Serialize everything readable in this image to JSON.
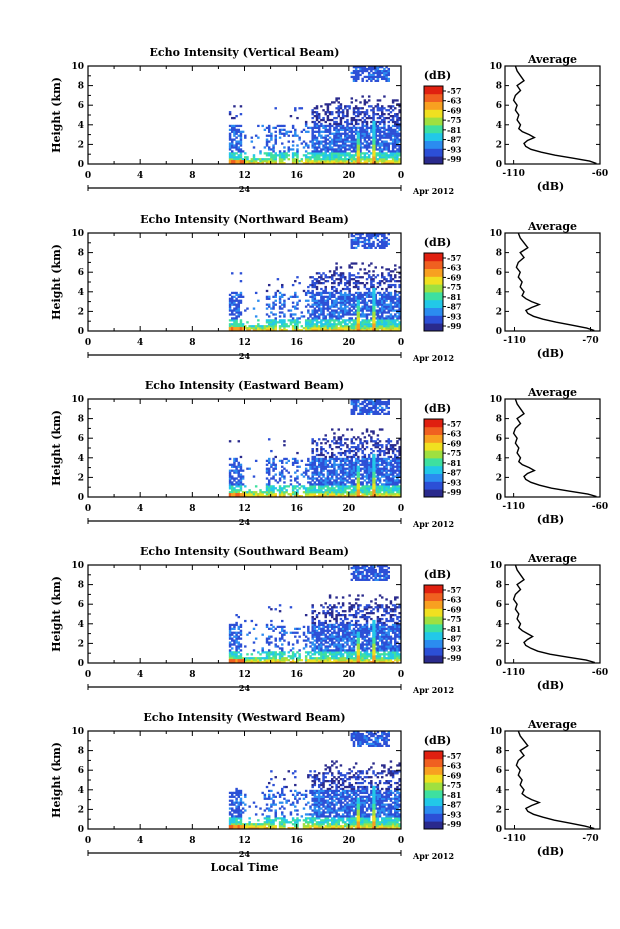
{
  "chart_data": [
    {
      "type": "heatmap",
      "title": "Echo Intensity (Vertical Beam)",
      "ylabel": "Height (km)",
      "xlabel": "",
      "x_ticks": [
        "0",
        "4",
        "8",
        "12",
        "16",
        "20",
        "0"
      ],
      "y_ticks": [
        "0",
        "2",
        "4",
        "6",
        "8",
        "10"
      ],
      "xlim": [
        0,
        24
      ],
      "ylim": [
        0,
        10
      ],
      "date_label": "24",
      "month_label": "Apr 2012",
      "colorbar": {
        "label": "(dB)",
        "ticks": [
          "-57",
          "-63",
          "-69",
          "-75",
          "-81",
          "-87",
          "-93",
          "-99"
        ]
      },
      "average_profile": {
        "title": "Average",
        "xlabel": "(dB)",
        "x_ticks": [
          "-110",
          "-60"
        ],
        "xlim": [
          -115,
          -60
        ],
        "y_ticks": [
          "0",
          "2",
          "4",
          "6",
          "8",
          "10"
        ],
        "values": [
          [
            0.05,
            -62
          ],
          [
            0.3,
            -66
          ],
          [
            0.6,
            -76
          ],
          [
            0.9,
            -86
          ],
          [
            1.2,
            -94
          ],
          [
            1.5,
            -100
          ],
          [
            1.8,
            -103
          ],
          [
            2.1,
            -104
          ],
          [
            2.4,
            -102
          ],
          [
            2.7,
            -98
          ],
          [
            3.0,
            -101
          ],
          [
            3.3,
            -105
          ],
          [
            3.6,
            -107
          ],
          [
            4.0,
            -106
          ],
          [
            4.5,
            -108
          ],
          [
            5.0,
            -107
          ],
          [
            5.5,
            -109
          ],
          [
            6.0,
            -108
          ],
          [
            6.5,
            -110
          ],
          [
            7.0,
            -109
          ],
          [
            7.5,
            -106
          ],
          [
            8.0,
            -108
          ],
          [
            8.5,
            -104
          ],
          [
            9.0,
            -106
          ],
          [
            9.5,
            -108
          ],
          [
            10.0,
            -109
          ]
        ]
      }
    },
    {
      "type": "heatmap",
      "title": "Echo Intensity (Northward Beam)",
      "ylabel": "Height (km)",
      "xlabel": "",
      "x_ticks": [
        "0",
        "4",
        "8",
        "12",
        "16",
        "20",
        "0"
      ],
      "y_ticks": [
        "0",
        "2",
        "4",
        "6",
        "8",
        "10"
      ],
      "xlim": [
        0,
        24
      ],
      "ylim": [
        0,
        10
      ],
      "date_label": "24",
      "month_label": "Apr 2012",
      "colorbar": {
        "label": "(dB)",
        "ticks": [
          "-57",
          "-63",
          "-69",
          "-75",
          "-81",
          "-87",
          "-93",
          "-99"
        ]
      },
      "average_profile": {
        "title": "Average",
        "xlabel": "(dB)",
        "x_ticks": [
          "-110",
          "-70"
        ],
        "xlim": [
          -115,
          -65
        ],
        "y_ticks": [
          "0",
          "2",
          "4",
          "6",
          "8",
          "10"
        ],
        "values": [
          [
            0.05,
            -68
          ],
          [
            0.3,
            -72
          ],
          [
            0.6,
            -80
          ],
          [
            0.9,
            -88
          ],
          [
            1.2,
            -95
          ],
          [
            1.5,
            -100
          ],
          [
            1.8,
            -103
          ],
          [
            2.1,
            -104
          ],
          [
            2.4,
            -101
          ],
          [
            2.7,
            -97
          ],
          [
            3.0,
            -101
          ],
          [
            3.3,
            -104
          ],
          [
            3.6,
            -106
          ],
          [
            4.0,
            -105
          ],
          [
            4.5,
            -107
          ],
          [
            5.0,
            -106
          ],
          [
            5.5,
            -108
          ],
          [
            6.0,
            -107
          ],
          [
            6.5,
            -109
          ],
          [
            7.0,
            -108
          ],
          [
            7.5,
            -105
          ],
          [
            8.0,
            -107
          ],
          [
            8.5,
            -103
          ],
          [
            9.0,
            -105
          ],
          [
            9.5,
            -107
          ],
          [
            10.0,
            -108
          ]
        ]
      }
    },
    {
      "type": "heatmap",
      "title": "Echo Intensity (Eastward Beam)",
      "ylabel": "Height (km)",
      "xlabel": "",
      "x_ticks": [
        "0",
        "4",
        "8",
        "12",
        "16",
        "20",
        "0"
      ],
      "y_ticks": [
        "0",
        "2",
        "4",
        "6",
        "8",
        "10"
      ],
      "xlim": [
        0,
        24
      ],
      "ylim": [
        0,
        10
      ],
      "date_label": "24",
      "month_label": "Apr 2012",
      "colorbar": {
        "label": "(dB)",
        "ticks": [
          "-57",
          "-63",
          "-69",
          "-75",
          "-81",
          "-87",
          "-93",
          "-99"
        ]
      },
      "average_profile": {
        "title": "Average",
        "xlabel": "(dB)",
        "x_ticks": [
          "-110",
          "-60"
        ],
        "xlim": [
          -115,
          -60
        ],
        "y_ticks": [
          "0",
          "2",
          "4",
          "6",
          "8",
          "10"
        ],
        "values": [
          [
            0.05,
            -62
          ],
          [
            0.3,
            -67
          ],
          [
            0.6,
            -78
          ],
          [
            0.9,
            -88
          ],
          [
            1.2,
            -95
          ],
          [
            1.5,
            -100
          ],
          [
            1.8,
            -103
          ],
          [
            2.1,
            -104
          ],
          [
            2.4,
            -102
          ],
          [
            2.7,
            -98
          ],
          [
            3.0,
            -101
          ],
          [
            3.3,
            -105
          ],
          [
            3.6,
            -107
          ],
          [
            4.0,
            -106
          ],
          [
            4.5,
            -108
          ],
          [
            5.0,
            -107
          ],
          [
            5.5,
            -109
          ],
          [
            6.0,
            -108
          ],
          [
            6.5,
            -110
          ],
          [
            7.0,
            -109
          ],
          [
            7.5,
            -106
          ],
          [
            8.0,
            -108
          ],
          [
            8.5,
            -104
          ],
          [
            9.0,
            -106
          ],
          [
            9.5,
            -108
          ],
          [
            10.0,
            -109
          ]
        ]
      }
    },
    {
      "type": "heatmap",
      "title": "Echo Intensity (Southward Beam)",
      "ylabel": "Height (km)",
      "xlabel": "",
      "x_ticks": [
        "0",
        "4",
        "8",
        "12",
        "16",
        "20",
        "0"
      ],
      "y_ticks": [
        "0",
        "2",
        "4",
        "6",
        "8",
        "10"
      ],
      "xlim": [
        0,
        24
      ],
      "ylim": [
        0,
        10
      ],
      "date_label": "24",
      "month_label": "Apr 2012",
      "colorbar": {
        "label": "(dB)",
        "ticks": [
          "-57",
          "-63",
          "-69",
          "-75",
          "-81",
          "-87",
          "-93",
          "-99"
        ]
      },
      "average_profile": {
        "title": "Average",
        "xlabel": "(dB)",
        "x_ticks": [
          "-110",
          "-60"
        ],
        "xlim": [
          -115,
          -60
        ],
        "y_ticks": [
          "0",
          "2",
          "4",
          "6",
          "8",
          "10"
        ],
        "values": [
          [
            0.05,
            -63
          ],
          [
            0.3,
            -68
          ],
          [
            0.6,
            -79
          ],
          [
            0.9,
            -89
          ],
          [
            1.2,
            -96
          ],
          [
            1.5,
            -100
          ],
          [
            1.8,
            -103
          ],
          [
            2.1,
            -104
          ],
          [
            2.4,
            -102
          ],
          [
            2.7,
            -99
          ],
          [
            3.0,
            -102
          ],
          [
            3.3,
            -105
          ],
          [
            3.6,
            -107
          ],
          [
            4.0,
            -106
          ],
          [
            4.5,
            -108
          ],
          [
            5.0,
            -107
          ],
          [
            5.5,
            -109
          ],
          [
            6.0,
            -108
          ],
          [
            6.5,
            -110
          ],
          [
            7.0,
            -109
          ],
          [
            7.5,
            -106
          ],
          [
            8.0,
            -108
          ],
          [
            8.5,
            -104
          ],
          [
            9.0,
            -106
          ],
          [
            9.5,
            -108
          ],
          [
            10.0,
            -109
          ]
        ]
      }
    },
    {
      "type": "heatmap",
      "title": "Echo Intensity (Westward Beam)",
      "ylabel": "Height (km)",
      "xlabel": "Local Time",
      "x_ticks": [
        "0",
        "4",
        "8",
        "12",
        "16",
        "20",
        "0"
      ],
      "y_ticks": [
        "0",
        "2",
        "4",
        "6",
        "8",
        "10"
      ],
      "xlim": [
        0,
        24
      ],
      "ylim": [
        0,
        10
      ],
      "date_label": "24",
      "month_label": "Apr 2012",
      "colorbar": {
        "label": "(dB)",
        "ticks": [
          "-57",
          "-63",
          "-69",
          "-75",
          "-81",
          "-87",
          "-93",
          "-99"
        ]
      },
      "average_profile": {
        "title": "Average",
        "xlabel": "(dB)",
        "x_ticks": [
          "-110",
          "-70"
        ],
        "xlim": [
          -115,
          -65
        ],
        "y_ticks": [
          "0",
          "2",
          "4",
          "6",
          "8",
          "10"
        ],
        "values": [
          [
            0.05,
            -68
          ],
          [
            0.3,
            -73
          ],
          [
            0.6,
            -81
          ],
          [
            0.9,
            -89
          ],
          [
            1.2,
            -95
          ],
          [
            1.5,
            -100
          ],
          [
            1.8,
            -103
          ],
          [
            2.1,
            -104
          ],
          [
            2.4,
            -101
          ],
          [
            2.7,
            -97
          ],
          [
            3.0,
            -101
          ],
          [
            3.3,
            -104
          ],
          [
            3.6,
            -106
          ],
          [
            4.0,
            -105
          ],
          [
            4.5,
            -107
          ],
          [
            5.0,
            -106
          ],
          [
            5.5,
            -108
          ],
          [
            6.0,
            -107
          ],
          [
            6.5,
            -109
          ],
          [
            7.0,
            -108
          ],
          [
            7.5,
            -105
          ],
          [
            8.0,
            -107
          ],
          [
            8.5,
            -103
          ],
          [
            9.0,
            -105
          ],
          [
            9.5,
            -107
          ],
          [
            10.0,
            -108
          ]
        ]
      }
    }
  ],
  "colormap": [
    "#2a2a8c",
    "#2c4fd6",
    "#2b8cf0",
    "#22c8e8",
    "#3ee0a0",
    "#9fe040",
    "#f0e020",
    "#f8a020",
    "#f06020",
    "#e02010"
  ]
}
